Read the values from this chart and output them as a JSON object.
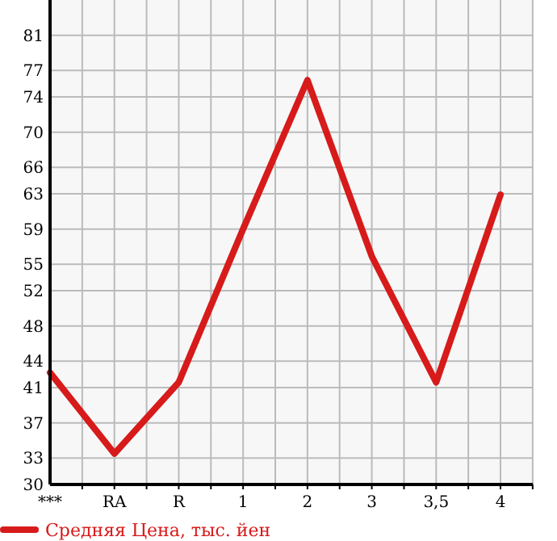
{
  "chart_data": {
    "type": "line",
    "categories": [
      "***",
      "RA",
      "R",
      "1",
      "2",
      "3",
      "3,5",
      "4"
    ],
    "series": [
      {
        "name": "Средняя Цена, тыс. йен",
        "color": "#d71a1a",
        "values": [
          42.7,
          33.5,
          41.6,
          59.0,
          75.9,
          55.9,
          41.6,
          62.9
        ]
      }
    ],
    "ylim": [
      30,
      85
    ],
    "yticks": [
      30,
      33,
      37,
      41,
      44,
      48,
      52,
      55,
      59,
      63,
      66,
      70,
      74,
      77,
      81
    ],
    "grid": true,
    "legend": "bottom",
    "marker": "none",
    "line_style": "solid"
  }
}
